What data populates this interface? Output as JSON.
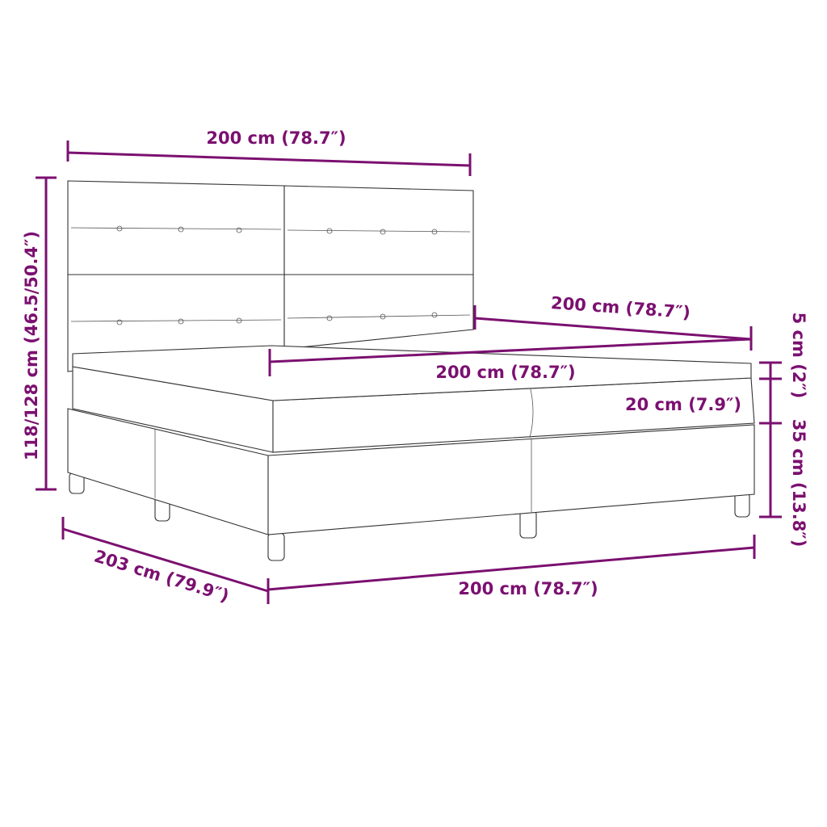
{
  "accent_color": "#7b1070",
  "dimensions": {
    "headboard_width": "200 cm (78.7″)",
    "total_height": "118/128 cm (46.5/50.4″)",
    "side_length": "200 cm (78.7″)",
    "topper_width": "200 cm (78.7″)",
    "mattress_height": "20 cm (7.9″)",
    "topper_height": "5 cm (2″)",
    "base_height": "35 cm (13.8″)",
    "total_length": "203 cm (79.9″)",
    "base_width": "200 cm (78.7″)"
  }
}
